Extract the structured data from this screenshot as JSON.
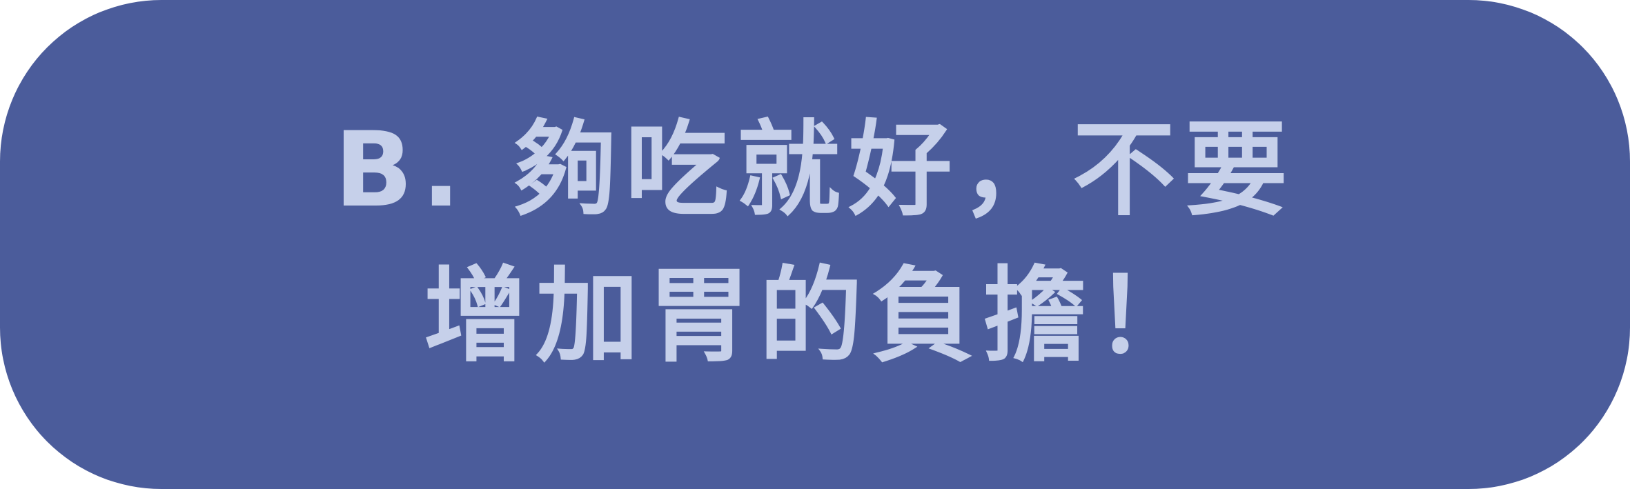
{
  "colors": {
    "button_background": "#4b5c9b",
    "text": "#c6d0ea"
  },
  "option": {
    "line1": "B. 夠吃就好，不要",
    "line2": "增加胃的負擔！"
  }
}
